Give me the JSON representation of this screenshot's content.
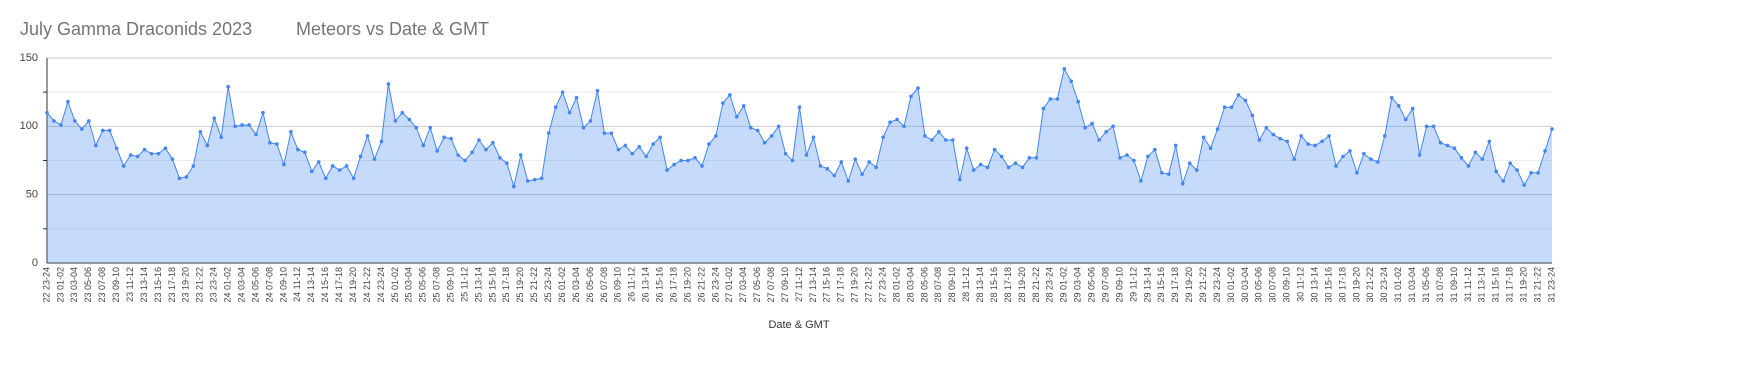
{
  "chart_data": {
    "type": "area",
    "title": "July Gamma Draconids 2023",
    "subtitle": "Meteors vs Date & GMT",
    "x_label": "Date & GMT",
    "categories": [
      "22 23-24",
      null,
      "23 01-02",
      null,
      "23 03-04",
      null,
      "23 05-06",
      null,
      "23 07-08",
      null,
      "23 09-10",
      null,
      "23 11-12",
      null,
      "23 13-14",
      null,
      "23 15-16",
      null,
      "23 17-18",
      null,
      "23 19-20",
      null,
      "23 21-22",
      null,
      "23 23-24",
      null,
      "24 01-02",
      null,
      "24 03-04",
      null,
      "24 05-06",
      null,
      "24 07-08",
      null,
      "24 09-10",
      null,
      "24 11-12",
      null,
      "24 13-14",
      null,
      "24 15-16",
      null,
      "24 17-18",
      null,
      "24 19-20",
      null,
      "24 21-22",
      null,
      "24 23-24",
      null,
      "25 01-02",
      null,
      "25 03-04",
      null,
      "25 05-06",
      null,
      "25 07-08",
      null,
      "25 09-10",
      null,
      "25 11-12",
      null,
      "25 13-14",
      null,
      "25 15-16",
      null,
      "25 17-18",
      null,
      "25 19-20",
      null,
      "25 21-22",
      null,
      "25 23-24",
      null,
      "26 01-02",
      null,
      "26 03-04",
      null,
      "26 05-06",
      null,
      "26 07-08",
      null,
      "26 09-10",
      null,
      "26 11-12",
      null,
      "26 13-14",
      null,
      "26 15-16",
      null,
      "26 17-18",
      null,
      "26 19-20",
      null,
      "26 21-22",
      null,
      "26 23-24",
      null,
      "27 01-02",
      null,
      "27 03-04",
      null,
      "27 05-06",
      null,
      "27 07-08",
      null,
      "27 09-10",
      null,
      "27 11-12",
      null,
      "27 13-14",
      null,
      "27 15-16",
      null,
      "27 17-18",
      null,
      "27 19-20",
      null,
      "27 21-22",
      null,
      "27 23-24",
      null,
      "28 01-02",
      null,
      "28 03-04",
      null,
      "28 05-06",
      null,
      "28 07-08",
      null,
      "28 09-10",
      null,
      "28 11-12",
      null,
      "28 13-14",
      null,
      "28 15-16",
      null,
      "28 17-18",
      null,
      "28 19-20",
      null,
      "28 21-22",
      null,
      "28 23-24",
      null,
      "29 01-02",
      null,
      "29 03-04",
      null,
      "29 05-06",
      null,
      "29 07-08",
      null,
      "29 09-10",
      null,
      "29 11-12",
      null,
      "29 13-14",
      null,
      "29 15-16",
      null,
      "29 17-18",
      null,
      "29 19-20",
      null,
      "29 21-22",
      null,
      "29 23-24",
      null,
      "30 01-02",
      null,
      "30 03-04",
      null,
      "30 05-06",
      null,
      "30 07-08",
      null,
      "30 09-10",
      null,
      "30 11-12",
      null,
      "30 13-14",
      null,
      "30 15-16",
      null,
      "30 17-18",
      null,
      "30 19-20",
      null,
      "30 21-22",
      null,
      "30 23-24",
      null,
      "31 01-02",
      null,
      "31 03-04",
      null,
      "31 05-06",
      null,
      "31 07-08",
      null,
      "31 09-10",
      null,
      "31 11-12",
      null,
      "31 13-14",
      null,
      "31 15-16",
      null,
      "31 17-18",
      null,
      "31 19-20",
      null,
      "31 21-22",
      null,
      "31 23-24"
    ],
    "values": [
      110,
      104,
      101,
      118,
      104,
      98,
      104,
      86,
      97,
      97,
      84,
      71,
      79,
      78,
      83,
      80,
      80,
      84,
      76,
      62,
      63,
      71,
      96,
      86,
      106,
      92,
      129,
      100,
      101,
      101,
      94,
      110,
      88,
      87,
      72,
      96,
      83,
      81,
      67,
      74,
      62,
      71,
      68,
      71,
      62,
      78,
      93,
      76,
      89,
      131,
      104,
      110,
      105,
      99,
      86,
      99,
      82,
      92,
      91,
      79,
      75,
      81,
      90,
      83,
      88,
      77,
      73,
      56,
      79,
      60,
      61,
      62,
      95,
      114,
      125,
      110,
      121,
      99,
      104,
      126,
      95,
      95,
      83,
      86,
      80,
      85,
      78,
      87,
      92,
      68,
      72,
      75,
      75,
      77,
      71,
      87,
      93,
      117,
      123,
      107,
      115,
      99,
      97,
      88,
      93,
      100,
      80,
      75,
      114,
      79,
      92,
      71,
      69,
      64,
      74,
      60,
      76,
      65,
      74,
      70,
      92,
      103,
      105,
      100,
      122,
      128,
      93,
      90,
      96,
      90,
      90,
      61,
      84,
      68,
      72,
      70,
      83,
      78,
      70,
      73,
      70,
      77,
      77,
      113,
      120,
      120,
      142,
      133,
      118,
      99,
      102,
      90,
      96,
      100,
      77,
      79,
      75,
      60,
      78,
      83,
      66,
      65,
      86,
      58,
      73,
      68,
      92,
      84,
      98,
      114,
      114,
      123,
      119,
      108,
      90,
      99,
      94,
      91,
      89,
      76,
      93,
      87,
      86,
      89,
      93,
      71,
      78,
      82,
      66,
      80,
      76,
      74,
      93,
      121,
      115,
      105,
      113,
      79,
      100,
      100,
      88,
      86,
      84,
      77,
      71,
      81,
      76,
      89,
      67,
      60,
      73,
      68,
      57,
      66,
      66,
      82,
      98
    ],
    "color": "#4285f4",
    "ylim": [
      0,
      150
    ],
    "yticks": [
      0,
      50,
      100,
      150
    ],
    "minor_yticks": [
      25,
      75,
      125
    ],
    "grid": true
  }
}
